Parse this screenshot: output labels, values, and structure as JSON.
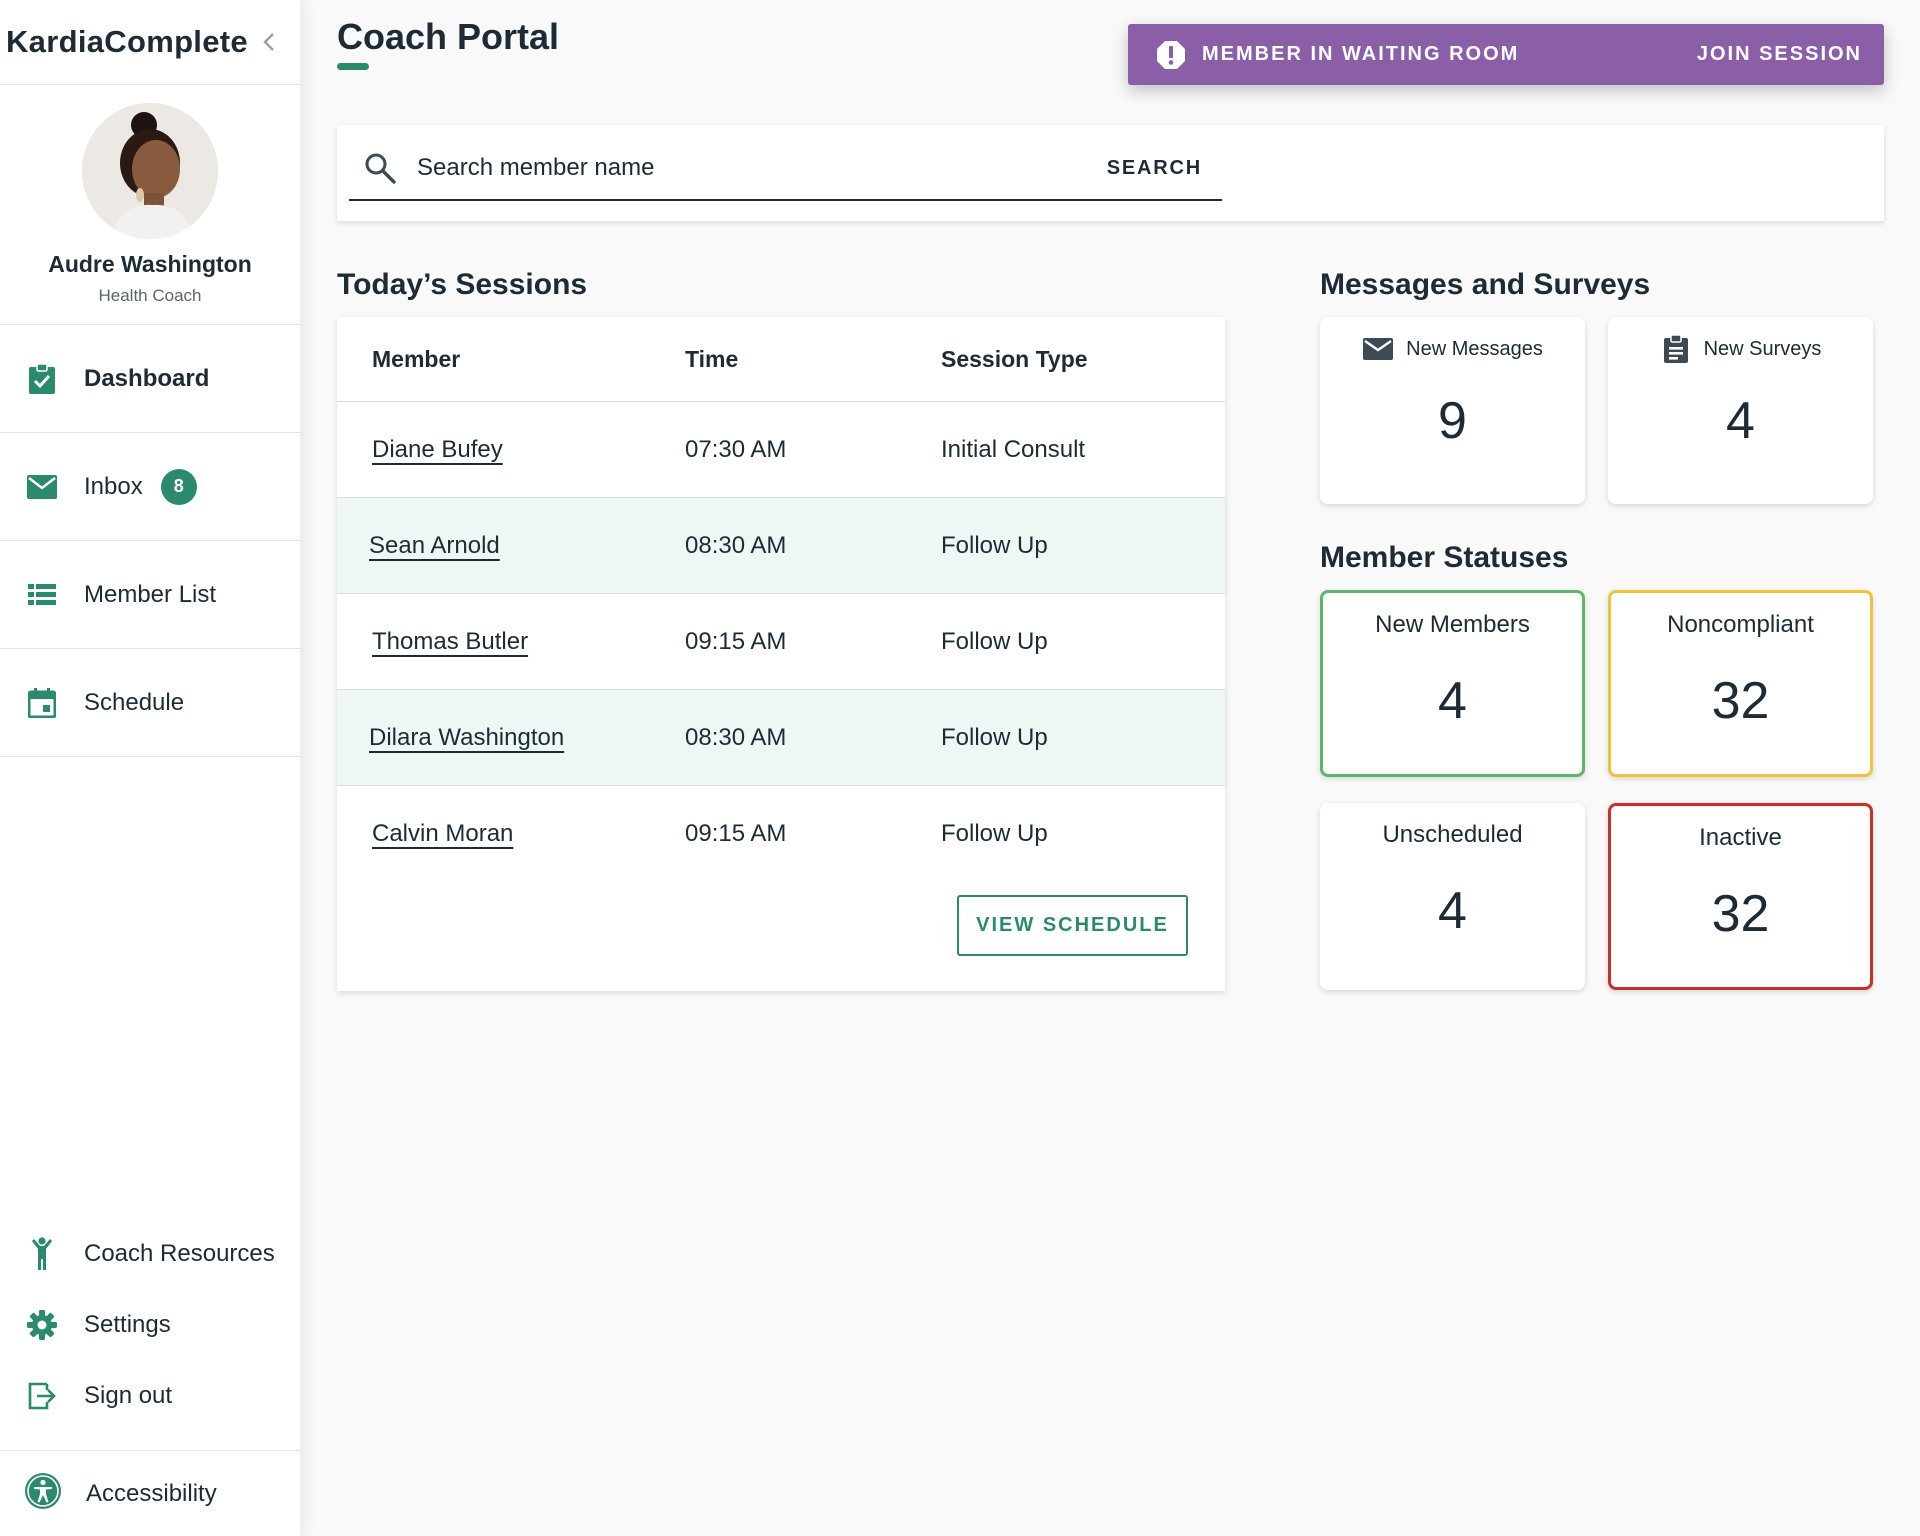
{
  "brand": "KardiaComplete",
  "profile": {
    "name": "Audre Washington",
    "role": "Health Coach"
  },
  "nav": {
    "dashboard": "Dashboard",
    "inbox": "Inbox",
    "inbox_badge": "8",
    "member_list": "Member List",
    "schedule": "Schedule",
    "coach_resources": "Coach Resources",
    "settings": "Settings",
    "sign_out": "Sign out",
    "accessibility": "Accessibility"
  },
  "header": {
    "title": "Coach Portal",
    "alert_text": "MEMBER IN WAITING ROOM",
    "alert_action": "JOIN SESSION"
  },
  "search": {
    "placeholder": "Search member name",
    "button": "SEARCH"
  },
  "sessions": {
    "title": "Today’s Sessions",
    "columns": [
      "Member",
      "Time",
      "Session Type"
    ],
    "rows": [
      {
        "member": "Diane Bufey",
        "time": "07:30 AM",
        "type": "Initial Consult"
      },
      {
        "member": "Sean Arnold",
        "time": "08:30 AM",
        "type": "Follow Up"
      },
      {
        "member": "Thomas Butler",
        "time": "09:15 AM",
        "type": "Follow Up"
      },
      {
        "member": "Dilara Washington",
        "time": "08:30 AM",
        "type": "Follow Up"
      },
      {
        "member": "Calvin Moran",
        "time": "09:15 AM",
        "type": "Follow Up"
      }
    ],
    "view_button": "VIEW SCHEDULE"
  },
  "messages": {
    "title": "Messages and Surveys",
    "new_messages_label": "New Messages",
    "new_messages": "9",
    "new_surveys_label": "New Surveys",
    "new_surveys": "4"
  },
  "statuses": {
    "title": "Member Statuses",
    "new_members_label": "New Members",
    "new_members": "4",
    "noncompliant_label": "Noncompliant",
    "noncompliant": "32",
    "unscheduled_label": "Unscheduled",
    "unscheduled": "4",
    "inactive_label": "Inactive",
    "inactive": "32"
  },
  "colors": {
    "accent": "#2b8a6e",
    "alert": "#8b5fa8",
    "status_green": "#5fb56a",
    "status_yellow": "#f0c23e",
    "status_red": "#c9302c"
  }
}
